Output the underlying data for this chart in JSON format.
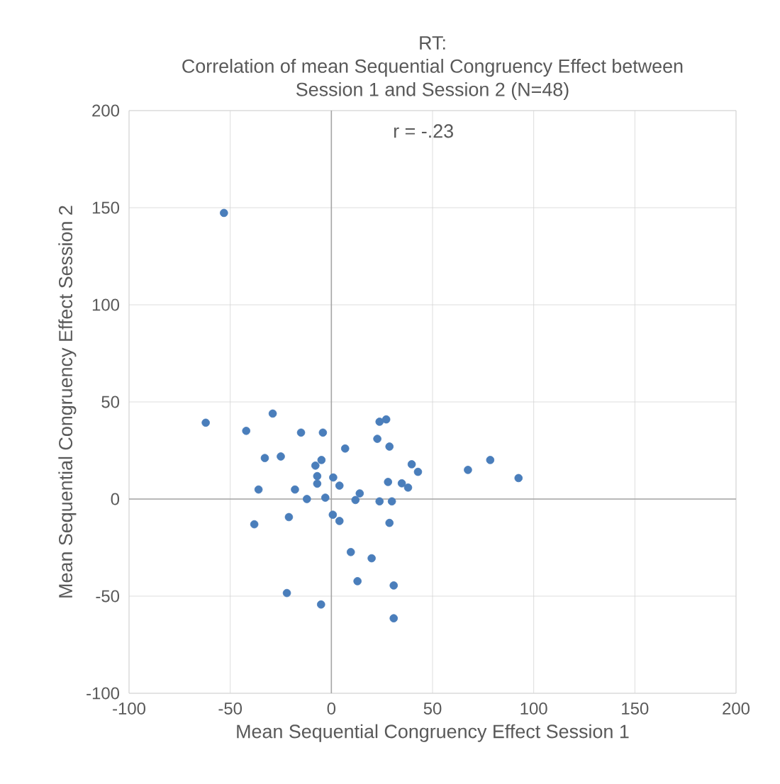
{
  "chart_data": {
    "type": "scatter",
    "title": "RT:\nCorrelation of mean Sequential Congruency Effect between\nSession 1 and Session 2 (N=48)",
    "xlabel": "Mean Sequential Congruency Effect Session 1",
    "ylabel": "Mean Sequential Congruency Effect Session 2",
    "annotations": [
      "r = -.23"
    ],
    "x": [
      -53.1,
      -62.1,
      -42.1,
      -29.0,
      -15.0,
      -4.2,
      -32.9,
      -25.0,
      -36.0,
      -18.0,
      -12.1,
      -3.0,
      -7.9,
      -4.9,
      -7.0,
      -7.0,
      0.9,
      4.0,
      6.8,
      11.9,
      14.0,
      23.8,
      27.1,
      22.7,
      28.7,
      23.8,
      29.9,
      28.0,
      34.8,
      37.9,
      39.7,
      42.8,
      67.5,
      78.5,
      92.5,
      -38.1,
      -21.0,
      0.7,
      4.0,
      28.7,
      9.6,
      19.9,
      12.9,
      30.8,
      -22.0,
      -5.1,
      30.8
    ],
    "values": [
      147.3,
      39.3,
      35.1,
      44.0,
      34.2,
      34.2,
      21.1,
      21.9,
      4.9,
      4.9,
      0,
      0.7,
      17.2,
      20.1,
      11.8,
      7.9,
      11.1,
      6.9,
      26.0,
      -0.5,
      2.9,
      39.8,
      41.0,
      31.0,
      27.0,
      -1.2,
      -1.2,
      8.8,
      8.1,
      5.9,
      17.9,
      14.0,
      15.0,
      20.1,
      10.8,
      -13.0,
      -9.3,
      -8.1,
      -11.3,
      -12.3,
      -27.3,
      -30.5,
      -42.3,
      -44.5,
      -48.4,
      -54.3,
      -61.4
    ],
    "color": "#4a7ebb",
    "marker": "circle",
    "grid": true,
    "xlim": [
      -100,
      200
    ],
    "ylim": [
      -100,
      200
    ],
    "xticks": [
      -100,
      -50,
      0,
      50,
      100,
      150,
      200
    ],
    "yticks": [
      -100,
      -50,
      0,
      50,
      100,
      150,
      200
    ]
  }
}
